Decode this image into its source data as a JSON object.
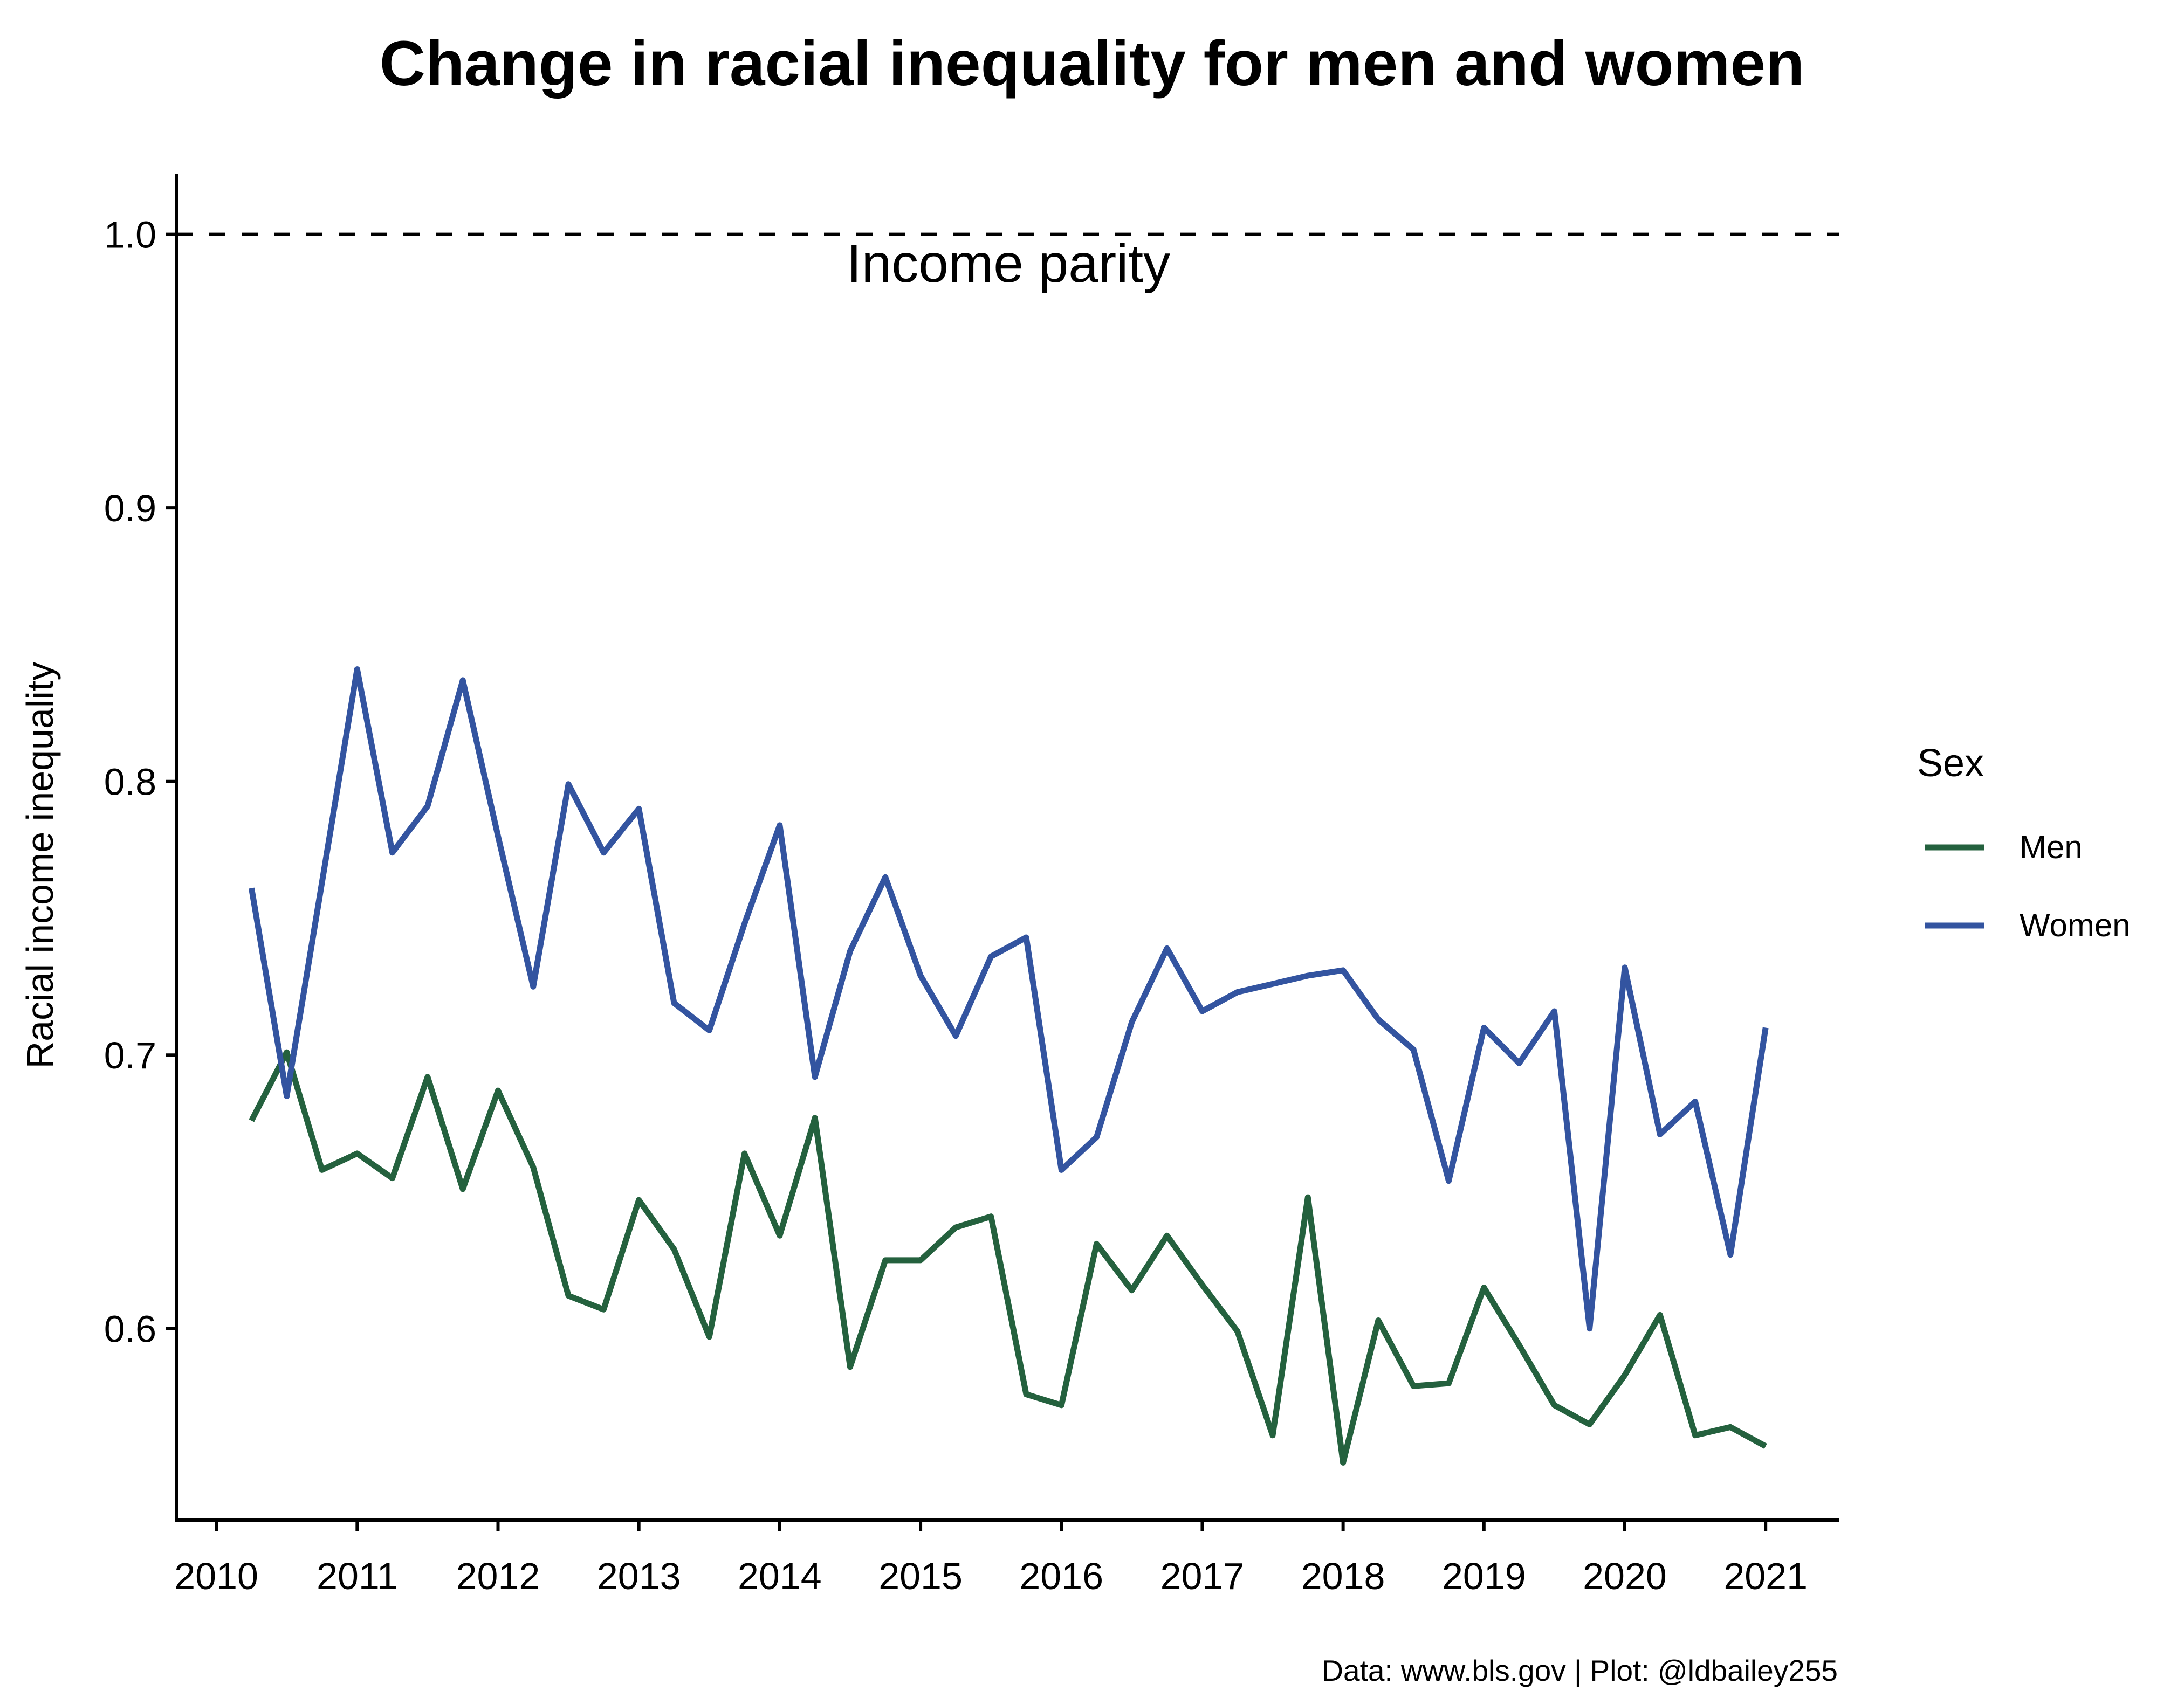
{
  "chart_data": {
    "type": "line",
    "title": "Change in racial inequality for men and women",
    "xlabel": "",
    "ylabel": "Racial income inequality",
    "xlim": [
      2009.72,
      2021.52
    ],
    "ylim": [
      0.53,
      1.022
    ],
    "x_ticks": [
      2010,
      2011,
      2012,
      2013,
      2014,
      2015,
      2016,
      2017,
      2018,
      2019,
      2020,
      2021
    ],
    "x_tick_labels": [
      "2010",
      "2011",
      "2012",
      "2013",
      "2014",
      "2015",
      "2016",
      "2017",
      "2018",
      "2019",
      "2020",
      "2021"
    ],
    "y_ticks": [
      0.6,
      0.7,
      0.8,
      0.9,
      1.0
    ],
    "y_tick_labels": [
      "0.6",
      "0.7",
      "0.8",
      "0.9",
      "1.0"
    ],
    "reference_line": {
      "y": 1.0,
      "style": "dashed",
      "label": "Income parity"
    },
    "legend": {
      "title": "Sex",
      "position": "right"
    },
    "grid": false,
    "x": [
      2010.25,
      2010.5,
      2010.75,
      2011,
      2011.25,
      2011.5,
      2011.75,
      2012,
      2012.25,
      2012.5,
      2012.75,
      2013,
      2013.25,
      2013.5,
      2013.75,
      2014,
      2014.25,
      2014.5,
      2014.75,
      2015,
      2015.25,
      2015.5,
      2015.75,
      2016,
      2016.25,
      2016.5,
      2016.75,
      2017,
      2017.25,
      2017.5,
      2017.75,
      2018,
      2018.25,
      2018.5,
      2018.75,
      2019,
      2019.25,
      2019.5,
      2019.75,
      2020,
      2020.25,
      2020.5,
      2020.75,
      2021
    ],
    "series": [
      {
        "name": "Men",
        "color": "#24613e",
        "values": [
          0.676,
          0.701,
          0.658,
          0.664,
          0.655,
          0.692,
          0.651,
          0.687,
          0.659,
          0.612,
          0.607,
          0.647,
          0.629,
          0.597,
          0.664,
          0.634,
          0.677,
          0.586,
          0.625,
          0.625,
          0.637,
          0.641,
          0.576,
          0.572,
          0.631,
          0.614,
          0.634,
          0.616,
          0.599,
          0.561,
          0.648,
          0.551,
          0.603,
          0.579,
          0.58,
          0.615,
          0.594,
          0.572,
          0.565,
          0.583,
          0.605,
          0.561,
          0.564,
          0.557
        ]
      },
      {
        "name": "Women",
        "color": "#3354a0",
        "values": [
          0.761,
          0.685,
          0.763,
          0.841,
          0.774,
          0.791,
          0.837,
          0.78,
          0.725,
          0.799,
          0.774,
          0.79,
          0.719,
          0.709,
          0.748,
          0.784,
          0.692,
          0.738,
          0.765,
          0.729,
          0.707,
          0.736,
          0.743,
          0.658,
          0.67,
          0.712,
          0.739,
          0.716,
          0.723,
          0.726,
          0.729,
          0.731,
          0.713,
          0.702,
          0.654,
          0.71,
          0.697,
          0.716,
          0.6,
          0.732,
          0.671,
          0.683,
          0.627,
          0.71
        ]
      }
    ],
    "caption": "Data: www.bls.gov | Plot: @ldbailey255"
  }
}
